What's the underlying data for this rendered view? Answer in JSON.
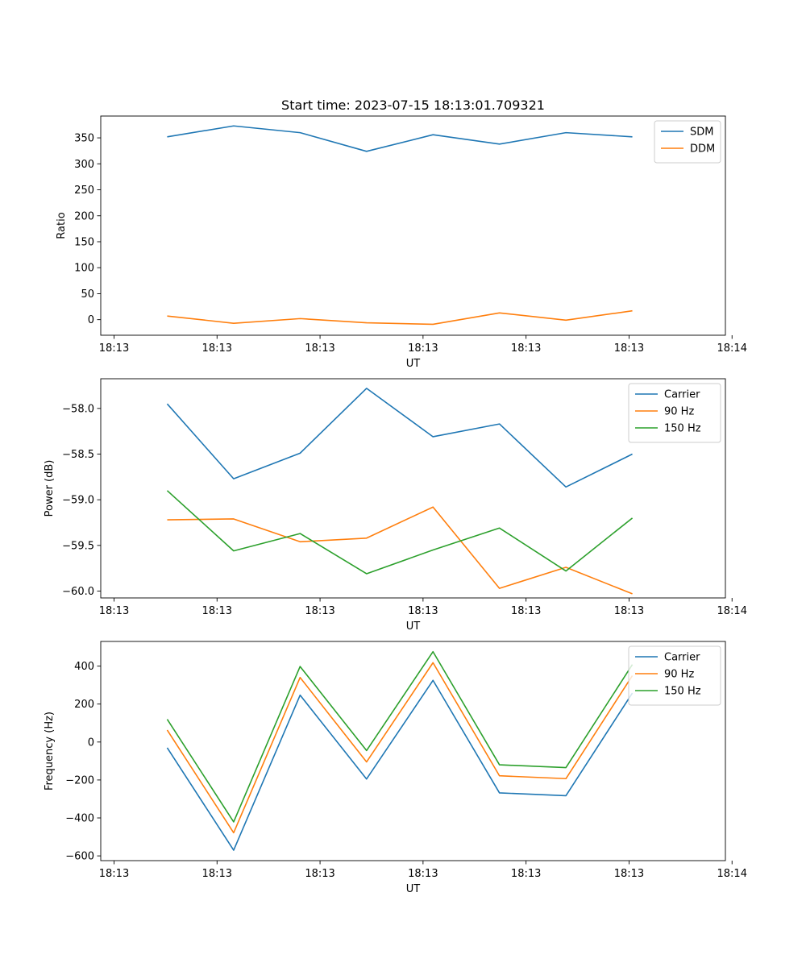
{
  "figure": {
    "title": "Start time: 2023-07-15 18:13:01.709321"
  },
  "colors": {
    "blue": "#1f77b4",
    "orange": "#ff7f0e",
    "green": "#2ca02c"
  },
  "chart_data": [
    {
      "type": "line",
      "name": "ratio",
      "title": "Start time: 2023-07-15 18:13:01.709321",
      "xlabel": "UT",
      "ylabel": "Ratio",
      "x": [
        1,
        2,
        3,
        4,
        5,
        6,
        7,
        8
      ],
      "xlim": [
        0,
        9.4
      ],
      "x_ticks": [
        0.2,
        1.75,
        3.3,
        4.85,
        6.4,
        7.95,
        9.5
      ],
      "x_tick_labels": [
        "18:13",
        "18:13",
        "18:13",
        "18:13",
        "18:13",
        "18:13",
        "18:14"
      ],
      "ylim": [
        -30,
        392
      ],
      "y_ticks": [
        0,
        50,
        100,
        150,
        200,
        250,
        300,
        350
      ],
      "y_tick_labels": [
        "0",
        "50",
        "100",
        "150",
        "200",
        "250",
        "300",
        "350"
      ],
      "legend": "upper right",
      "series": [
        {
          "name": "SDM",
          "color": "#1f77b4",
          "values": [
            352,
            373,
            360,
            324,
            356,
            338,
            360,
            352
          ]
        },
        {
          "name": "DDM",
          "color": "#ff7f0e",
          "values": [
            7,
            -7,
            2,
            -6,
            -9,
            13,
            -1,
            17
          ]
        }
      ]
    },
    {
      "type": "line",
      "name": "power",
      "title": "",
      "xlabel": "UT",
      "ylabel": "Power (dB)",
      "x": [
        1,
        2,
        3,
        4,
        5,
        6,
        7,
        8
      ],
      "xlim": [
        0,
        9.4
      ],
      "x_ticks": [
        0.2,
        1.75,
        3.3,
        4.85,
        6.4,
        7.95,
        9.5
      ],
      "x_tick_labels": [
        "18:13",
        "18:13",
        "18:13",
        "18:13",
        "18:13",
        "18:13",
        "18:14"
      ],
      "ylim": [
        -60.075,
        -57.675
      ],
      "y_ticks": [
        -60.0,
        -59.5,
        -59.0,
        -58.5,
        -58.0
      ],
      "y_tick_labels": [
        "−60.0",
        "−59.5",
        "−59.0",
        "−58.5",
        "−58.0"
      ],
      "legend": "upper right",
      "series": [
        {
          "name": "Carrier",
          "color": "#1f77b4",
          "values": [
            -57.95,
            -58.77,
            -58.49,
            -57.78,
            -58.31,
            -58.17,
            -58.86,
            -58.5
          ]
        },
        {
          "name": "90 Hz",
          "color": "#ff7f0e",
          "values": [
            -59.22,
            -59.21,
            -59.46,
            -59.42,
            -59.08,
            -59.97,
            -59.74,
            -60.03
          ]
        },
        {
          "name": "150 Hz",
          "color": "#2ca02c",
          "values": [
            -58.9,
            -59.56,
            -59.37,
            -59.81,
            -59.55,
            -59.31,
            -59.78,
            -59.2
          ]
        }
      ]
    },
    {
      "type": "line",
      "name": "frequency",
      "title": "",
      "xlabel": "UT",
      "ylabel": "Frequency (Hz)",
      "x": [
        1,
        2,
        3,
        4,
        5,
        6,
        7,
        8
      ],
      "xlim": [
        0,
        9.4
      ],
      "x_ticks": [
        0.2,
        1.75,
        3.3,
        4.85,
        6.4,
        7.95,
        9.5
      ],
      "x_tick_labels": [
        "18:13",
        "18:13",
        "18:13",
        "18:13",
        "18:13",
        "18:13",
        "18:14"
      ],
      "ylim": [
        -625,
        530
      ],
      "y_ticks": [
        -600,
        -400,
        -200,
        0,
        200,
        400
      ],
      "y_tick_labels": [
        "−600",
        "−400",
        "−200",
        "0",
        "200",
        "400"
      ],
      "legend": "upper right",
      "series": [
        {
          "name": "Carrier",
          "color": "#1f77b4",
          "values": [
            -30,
            -570,
            247,
            -195,
            325,
            -268,
            -283,
            258
          ]
        },
        {
          "name": "90 Hz",
          "color": "#ff7f0e",
          "values": [
            63,
            -478,
            340,
            -105,
            418,
            -178,
            -193,
            350
          ]
        },
        {
          "name": "150 Hz",
          "color": "#2ca02c",
          "values": [
            120,
            -421,
            398,
            -45,
            476,
            -120,
            -135,
            408
          ]
        }
      ]
    }
  ]
}
